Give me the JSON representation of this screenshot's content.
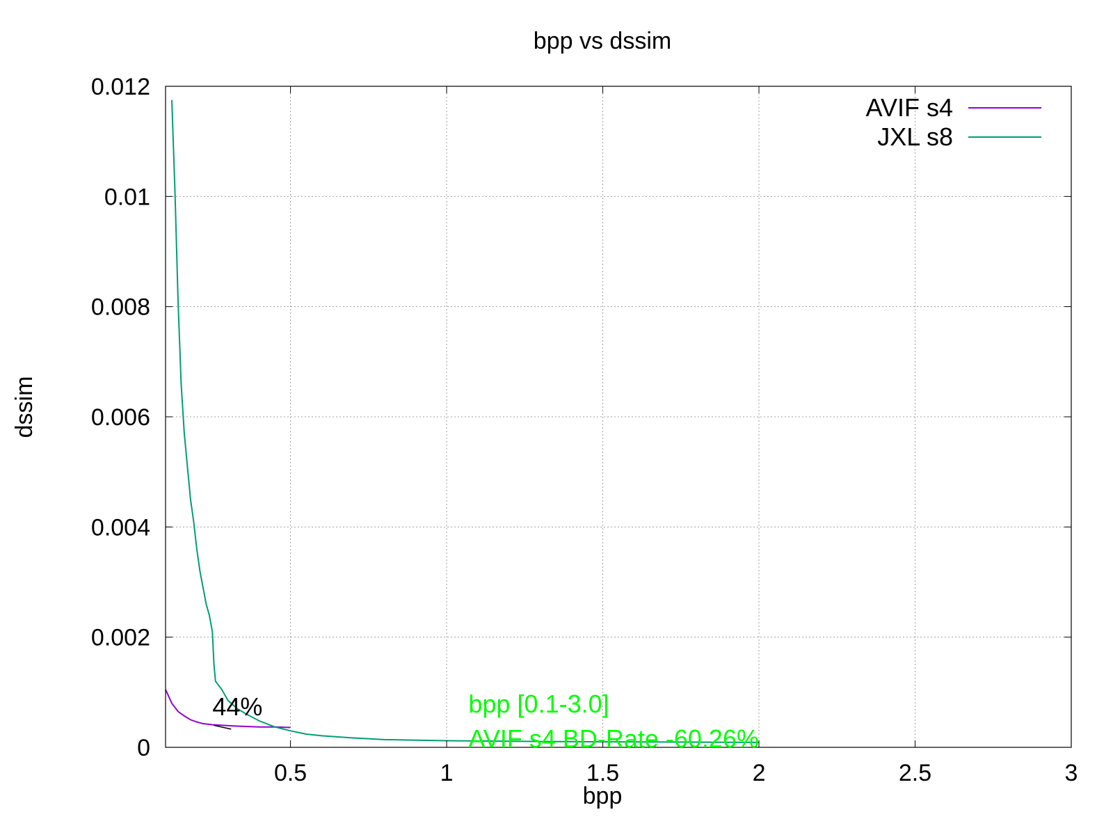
{
  "chart_data": {
    "type": "line",
    "title": "bpp vs dssim",
    "xlabel": "bpp",
    "ylabel": "dssim",
    "xlim": [
      0.1,
      3.0
    ],
    "ylim": [
      0,
      0.012
    ],
    "xticks": [
      "0.5",
      "1",
      "1.5",
      "2",
      "2.5",
      "3"
    ],
    "xtick_values": [
      0.5,
      1,
      1.5,
      2,
      2.5,
      3
    ],
    "yticks": [
      "0",
      "0.002",
      "0.004",
      "0.006",
      "0.008",
      "0.01",
      "0.012"
    ],
    "ytick_values": [
      0,
      0.002,
      0.004,
      0.006,
      0.008,
      0.01,
      0.012
    ],
    "grid": true,
    "legend_position": "top-right",
    "series": [
      {
        "name": "AVIF s4",
        "color": "#9400d3",
        "x": [
          0.1,
          0.12,
          0.14,
          0.16,
          0.18,
          0.2,
          0.22,
          0.25,
          0.28,
          0.31,
          0.35,
          0.4,
          0.45,
          0.5
        ],
        "y": [
          0.00105,
          0.0008,
          0.00065,
          0.00057,
          0.0005,
          0.00046,
          0.00043,
          0.00041,
          0.0004,
          0.00039,
          0.00038,
          0.00037,
          0.00037,
          0.00036
        ]
      },
      {
        "name": "JXL s8",
        "color": "#009e73",
        "x": [
          0.12,
          0.13,
          0.14,
          0.15,
          0.16,
          0.17,
          0.18,
          0.19,
          0.2,
          0.21,
          0.22,
          0.23,
          0.24,
          0.25,
          0.255,
          0.26,
          0.28,
          0.3,
          0.33,
          0.36,
          0.4,
          0.45,
          0.5,
          0.55,
          0.6,
          0.7,
          0.8,
          1.0,
          1.2,
          1.5,
          1.8,
          2.0
        ],
        "y": [
          0.01175,
          0.0101,
          0.0081,
          0.0066,
          0.0057,
          0.0051,
          0.0045,
          0.0041,
          0.0036,
          0.0032,
          0.0029,
          0.0026,
          0.0024,
          0.0021,
          0.0015,
          0.0012,
          0.00105,
          0.00085,
          0.0007,
          0.0006,
          0.00048,
          0.00037,
          0.0003,
          0.00024,
          0.00021,
          0.00017,
          0.00014,
          0.00012,
          0.00011,
          0.0001,
          9.5e-05,
          9e-05
        ]
      }
    ],
    "annotations": [
      {
        "text": "44%",
        "x": 0.25,
        "y": 0.00058,
        "color": "#000000"
      },
      {
        "text": "bpp [0.1-3.0]",
        "x": 1.07,
        "y": 0.00063,
        "color": "#00ff00"
      },
      {
        "text": "AVIF s4 BD-Rate -60.26%",
        "x": 1.07,
        "y": 0.0,
        "color": "#00ff00"
      }
    ]
  }
}
